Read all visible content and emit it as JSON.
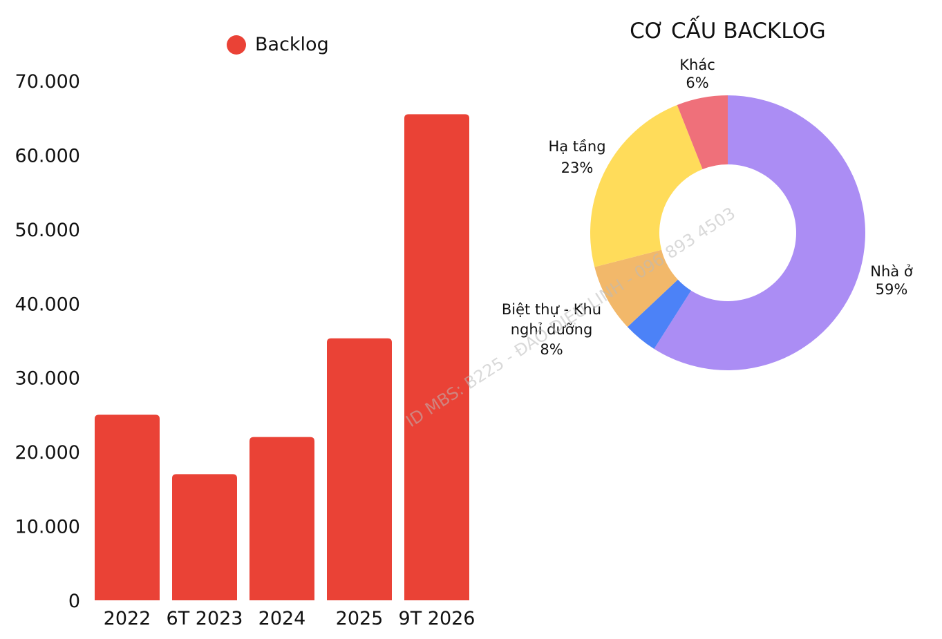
{
  "chart_data": [
    {
      "type": "bar",
      "categories": [
        "2022",
        "6T 2023",
        "2024",
        "2025",
        "9T 2026"
      ],
      "series": [
        {
          "name": "Backlog",
          "values": [
            25000,
            17000,
            22000,
            35300,
            65500
          ]
        }
      ],
      "yticks": [
        "0",
        "10.000",
        "20.000",
        "30.000",
        "40.000",
        "50.000",
        "60.000",
        "70.000"
      ],
      "ylim": [
        0,
        70000
      ],
      "legend": "top-center",
      "grid": false,
      "color": "#ea4236"
    },
    {
      "type": "pie",
      "title": "CƠ CẤU BACKLOG",
      "slices": [
        {
          "label_lines": [
            "Nhà ở",
            "59%"
          ],
          "value": 59,
          "color": "#ab8df4"
        },
        {
          "label_lines": [
            "",
            ""
          ],
          "value": 4,
          "color": "#4c82f7"
        },
        {
          "label_lines": [
            "Biệt thự - Khu",
            "nghỉ dưỡng",
            "8%"
          ],
          "value": 8,
          "color": "#f2b86a"
        },
        {
          "label_lines": [
            "Hạ tầng",
            "23%"
          ],
          "value": 23,
          "color": "#ffdc5a"
        },
        {
          "label_lines": [
            "Khác",
            "6%"
          ],
          "value": 6,
          "color": "#ef707a"
        }
      ],
      "donut": true
    }
  ],
  "watermark": "ID MBS: B225 - ĐÀO DIỆU LINH - 096 893 4503"
}
